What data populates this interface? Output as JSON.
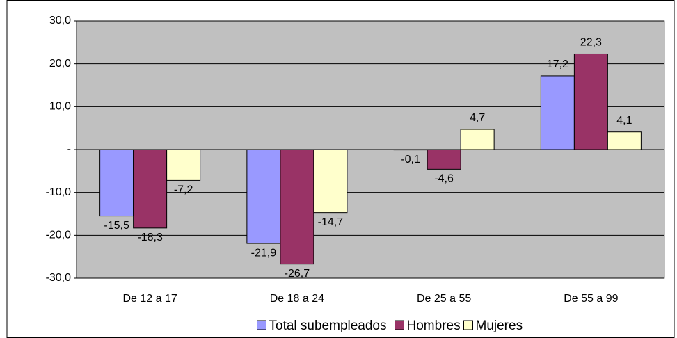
{
  "chart_data": {
    "type": "bar",
    "categories": [
      "De 12 a 17",
      "De 18 a 24",
      "De 25 a 55",
      "De 55 a 99"
    ],
    "series": [
      {
        "name": "Total subempleados",
        "color": "#9999ff",
        "values": [
          -15.5,
          -21.9,
          -0.1,
          17.2
        ],
        "value_labels": [
          "-15,5",
          "-21,9",
          "-0,1",
          "17,2"
        ]
      },
      {
        "name": "Hombres",
        "color": "#993366",
        "values": [
          -18.3,
          -26.7,
          -4.6,
          22.3
        ],
        "value_labels": [
          "-18,3",
          "-26,7",
          "-4,6",
          "22,3"
        ]
      },
      {
        "name": "Mujeres",
        "color": "#ffffcc",
        "values": [
          -7.2,
          -14.7,
          4.7,
          4.1
        ],
        "value_labels": [
          "-7,2",
          "-14,7",
          "4,7",
          "4,1"
        ]
      }
    ],
    "ylim": [
      -30,
      30
    ],
    "yticks": [
      {
        "value": -30,
        "label": "-30,0"
      },
      {
        "value": -20,
        "label": "-20,0"
      },
      {
        "value": -10,
        "label": "-10,0"
      },
      {
        "value": 0,
        "label": "-"
      },
      {
        "value": 10,
        "label": "10,0"
      },
      {
        "value": 20,
        "label": "20,0"
      },
      {
        "value": 30,
        "label": "30,0"
      }
    ],
    "grid": true,
    "legend": "bottom"
  }
}
